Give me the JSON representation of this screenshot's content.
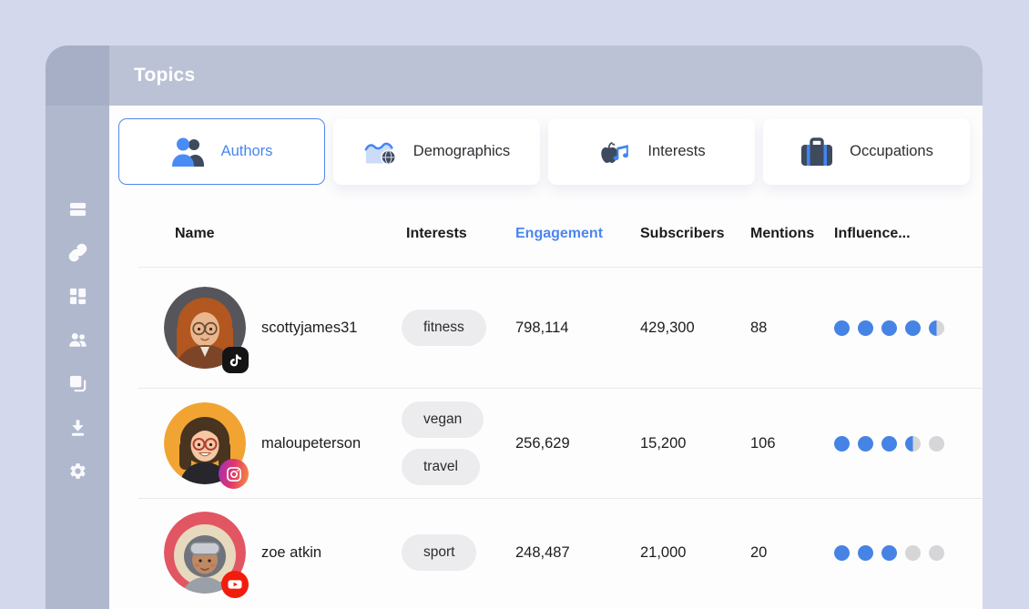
{
  "window": {
    "title": "Topics"
  },
  "sidebar": {
    "icons": [
      "cards-icon",
      "link-icon",
      "dashboard-icon",
      "people-icon",
      "copy-icon",
      "download-icon",
      "settings-icon"
    ]
  },
  "tabs": [
    {
      "label": "Authors",
      "icon": "authors-people-icon",
      "active": true
    },
    {
      "label": "Demographics",
      "icon": "area-chart-globe-icon",
      "active": false
    },
    {
      "label": "Interests",
      "icon": "apple-music-note-icon",
      "active": false
    },
    {
      "label": "Occupations",
      "icon": "briefcase-icon",
      "active": false
    }
  ],
  "table": {
    "columns": {
      "name": "Name",
      "interests": "Interests",
      "engagement": "Engagement",
      "subscribers": "Subscribers",
      "mentions": "Mentions",
      "influence": "Influence..."
    },
    "sorted_column": "Engagement",
    "rows": [
      {
        "name": "scottyjames31",
        "platform": "tiktok",
        "interests": [
          "fitness"
        ],
        "engagement": "798,114",
        "subscribers": "429,300",
        "mentions": "88",
        "influence": 4.5
      },
      {
        "name": "maloupeterson",
        "platform": "instagram",
        "interests": [
          "vegan",
          "travel"
        ],
        "engagement": "256,629",
        "subscribers": "15,200",
        "mentions": "106",
        "influence": 3.5
      },
      {
        "name": "zoe atkin",
        "platform": "youtube",
        "interests": [
          "sport"
        ],
        "engagement": "248,487",
        "subscribers": "21,000",
        "mentions": "20",
        "influence": 3
      }
    ]
  },
  "colors": {
    "background": "#d3d8ec",
    "sidebar": "#b0b8ce",
    "header_bar": "#bcc2d5",
    "accent_blue": "#4687ef",
    "icon_navy": "#3e4a5e",
    "dot_blue": "#4584e4",
    "dot_gray": "#d6d6d8",
    "chip_bg": "#ececee",
    "tiktok_black": "#141414",
    "youtube_red": "#f21c0d"
  }
}
